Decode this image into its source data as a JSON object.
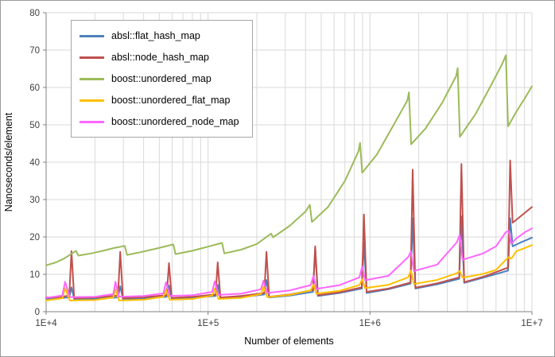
{
  "window": {
    "background": "#ffffff",
    "border_color": "#9b9b9b"
  },
  "chart_data": {
    "type": "line",
    "title": "",
    "xlabel": "Number of elements",
    "ylabel": "Nanoseconds/element",
    "x_scale": "log",
    "x_range": [
      10000,
      10000000
    ],
    "ylim": [
      0,
      80
    ],
    "grid": true,
    "gridline_color": "#d9d9d9",
    "axis_color": "#808080",
    "tick_label_color": "#3f3f3f",
    "legend_position": "top-left-inside",
    "y_ticks": [
      0,
      10,
      20,
      30,
      40,
      50,
      60,
      70,
      80
    ],
    "x_ticks": [
      {
        "value": 10000,
        "label": "1E+4"
      },
      {
        "value": 100000,
        "label": "1E+5"
      },
      {
        "value": 1000000,
        "label": "1E+6"
      },
      {
        "value": 10000000,
        "label": "1E+7"
      }
    ],
    "series": [
      {
        "name": "absl::flat_hash_map",
        "color": "#4F81BD",
        "points": [
          [
            10000,
            3.5
          ],
          [
            13900,
            3.8
          ],
          [
            14336,
            6.5
          ],
          [
            14900,
            3.4
          ],
          [
            20000,
            3.5
          ],
          [
            27800,
            3.8
          ],
          [
            28672,
            6.8
          ],
          [
            29800,
            3.4
          ],
          [
            40000,
            3.6
          ],
          [
            55600,
            4.0
          ],
          [
            57344,
            7.0
          ],
          [
            59600,
            3.5
          ],
          [
            80000,
            3.7
          ],
          [
            111200,
            4.2
          ],
          [
            114688,
            7.2
          ],
          [
            119200,
            3.6
          ],
          [
            160000,
            3.9
          ],
          [
            222400,
            4.6
          ],
          [
            229376,
            8.5
          ],
          [
            238400,
            3.8
          ],
          [
            320000,
            4.3
          ],
          [
            445000,
            5.3
          ],
          [
            458752,
            17.0
          ],
          [
            476800,
            4.2
          ],
          [
            650000,
            5.0
          ],
          [
            890000,
            6.2
          ],
          [
            917504,
            18.5
          ],
          [
            953600,
            5.0
          ],
          [
            1300000,
            6.0
          ],
          [
            1780000,
            7.5
          ],
          [
            1835008,
            25.0
          ],
          [
            1907200,
            6.2
          ],
          [
            2600000,
            7.3
          ],
          [
            3560000,
            8.8
          ],
          [
            3670016,
            25.5
          ],
          [
            3814400,
            7.7
          ],
          [
            5200000,
            9.3
          ],
          [
            7120000,
            11.0
          ],
          [
            7340032,
            25.0
          ],
          [
            7600000,
            17.5
          ],
          [
            8500000,
            18.5
          ],
          [
            10000000,
            19.8
          ]
        ]
      },
      {
        "name": "absl::node_hash_map",
        "color": "#C0504D",
        "points": [
          [
            10000,
            3.8
          ],
          [
            12000,
            3.9
          ],
          [
            13900,
            4.3
          ],
          [
            14336,
            16.2
          ],
          [
            14900,
            3.6
          ],
          [
            20000,
            3.8
          ],
          [
            27800,
            4.3
          ],
          [
            28672,
            16.0
          ],
          [
            29800,
            3.6
          ],
          [
            40000,
            3.9
          ],
          [
            55600,
            4.4
          ],
          [
            57344,
            13.0
          ],
          [
            59600,
            3.7
          ],
          [
            80000,
            4.0
          ],
          [
            111200,
            4.6
          ],
          [
            114688,
            13.2
          ],
          [
            119200,
            3.8
          ],
          [
            160000,
            4.2
          ],
          [
            222400,
            5.0
          ],
          [
            229376,
            16.0
          ],
          [
            238400,
            4.0
          ],
          [
            320000,
            4.6
          ],
          [
            445000,
            5.8
          ],
          [
            458752,
            17.5
          ],
          [
            476800,
            4.4
          ],
          [
            650000,
            5.2
          ],
          [
            890000,
            6.5
          ],
          [
            917504,
            26.0
          ],
          [
            953600,
            5.3
          ],
          [
            1300000,
            6.2
          ],
          [
            1780000,
            7.8
          ],
          [
            1835008,
            38.0
          ],
          [
            1907200,
            6.4
          ],
          [
            2600000,
            7.6
          ],
          [
            3560000,
            9.2
          ],
          [
            3670016,
            39.5
          ],
          [
            3814400,
            7.9
          ],
          [
            5200000,
            9.6
          ],
          [
            7120000,
            11.8
          ],
          [
            7340032,
            40.5
          ],
          [
            7600000,
            23.8
          ],
          [
            8500000,
            25.5
          ],
          [
            10000000,
            28.0
          ]
        ]
      },
      {
        "name": "boost::unordered_map",
        "color": "#9BBB59",
        "points": [
          [
            10000,
            12.4
          ],
          [
            11500,
            13.2
          ],
          [
            13000,
            14.3
          ],
          [
            15300,
            16.3
          ],
          [
            15800,
            15.0
          ],
          [
            19000,
            15.6
          ],
          [
            23000,
            16.4
          ],
          [
            26000,
            17.0
          ],
          [
            30600,
            17.6
          ],
          [
            31600,
            15.2
          ],
          [
            38000,
            15.9
          ],
          [
            48000,
            16.9
          ],
          [
            61000,
            18.0
          ],
          [
            63000,
            15.4
          ],
          [
            80000,
            16.3
          ],
          [
            100000,
            17.4
          ],
          [
            122000,
            18.4
          ],
          [
            126000,
            15.6
          ],
          [
            160000,
            16.6
          ],
          [
            200000,
            18.1
          ],
          [
            245000,
            20.9
          ],
          [
            252000,
            19.9
          ],
          [
            320000,
            23.0
          ],
          [
            400000,
            26.8
          ],
          [
            425000,
            28.6
          ],
          [
            438000,
            24.0
          ],
          [
            550000,
            28.0
          ],
          [
            700000,
            35.0
          ],
          [
            850000,
            43.0
          ],
          [
            868000,
            45.2
          ],
          [
            895000,
            37.2
          ],
          [
            1100000,
            42.0
          ],
          [
            1400000,
            50.0
          ],
          [
            1700000,
            56.5
          ],
          [
            1740000,
            58.7
          ],
          [
            1795000,
            44.8
          ],
          [
            2200000,
            49.0
          ],
          [
            2800000,
            56.0
          ],
          [
            3400000,
            63.0
          ],
          [
            3480000,
            65.2
          ],
          [
            3590000,
            46.8
          ],
          [
            4500000,
            53.0
          ],
          [
            5500000,
            60.0
          ],
          [
            6500000,
            66.0
          ],
          [
            6900000,
            68.6
          ],
          [
            7120000,
            49.6
          ],
          [
            8000000,
            53.5
          ],
          [
            9000000,
            57.0
          ],
          [
            10000000,
            60.3
          ]
        ]
      },
      {
        "name": "boost::unordered_flat_map",
        "color": "#FFC000",
        "points": [
          [
            10000,
            3.0
          ],
          [
            12600,
            3.6
          ],
          [
            13100,
            6.3
          ],
          [
            14000,
            3.0
          ],
          [
            20000,
            3.1
          ],
          [
            26000,
            3.8
          ],
          [
            26800,
            6.0
          ],
          [
            28200,
            3.0
          ],
          [
            40000,
            3.2
          ],
          [
            53000,
            4.0
          ],
          [
            55000,
            5.8
          ],
          [
            58000,
            3.2
          ],
          [
            80000,
            3.4
          ],
          [
            106000,
            4.3
          ],
          [
            110000,
            6.1
          ],
          [
            116000,
            3.4
          ],
          [
            160000,
            3.7
          ],
          [
            212000,
            4.7
          ],
          [
            220000,
            6.7
          ],
          [
            232000,
            3.9
          ],
          [
            320000,
            4.5
          ],
          [
            430000,
            5.7
          ],
          [
            448000,
            7.3
          ],
          [
            466000,
            4.8
          ],
          [
            650000,
            5.6
          ],
          [
            860000,
            7.1
          ],
          [
            896000,
            8.7
          ],
          [
            932000,
            6.3
          ],
          [
            1300000,
            7.2
          ],
          [
            1720000,
            9.2
          ],
          [
            1790000,
            11.0
          ],
          [
            1865000,
            7.4
          ],
          [
            2600000,
            8.5
          ],
          [
            3440000,
            10.3
          ],
          [
            3580000,
            10.9
          ],
          [
            3730000,
            9.1
          ],
          [
            5000000,
            10.1
          ],
          [
            6000000,
            11.2
          ],
          [
            6900000,
            13.9
          ],
          [
            7200000,
            14.6
          ],
          [
            7460000,
            14.2
          ],
          [
            8000000,
            16.2
          ],
          [
            9000000,
            17.0
          ],
          [
            10000000,
            17.8
          ]
        ]
      },
      {
        "name": "boost::unordered_node_map",
        "color": "#FF66FF",
        "points": [
          [
            10000,
            3.7
          ],
          [
            12600,
            4.3
          ],
          [
            13100,
            8.0
          ],
          [
            14000,
            3.9
          ],
          [
            20000,
            4.0
          ],
          [
            26000,
            4.7
          ],
          [
            26800,
            8.0
          ],
          [
            28200,
            4.0
          ],
          [
            40000,
            4.2
          ],
          [
            53000,
            4.9
          ],
          [
            55000,
            7.9
          ],
          [
            58000,
            4.2
          ],
          [
            80000,
            4.4
          ],
          [
            106000,
            5.3
          ],
          [
            110000,
            8.1
          ],
          [
            116000,
            4.5
          ],
          [
            160000,
            4.8
          ],
          [
            212000,
            6.0
          ],
          [
            220000,
            8.3
          ],
          [
            232000,
            5.0
          ],
          [
            320000,
            5.7
          ],
          [
            430000,
            7.1
          ],
          [
            448000,
            9.6
          ],
          [
            466000,
            6.1
          ],
          [
            650000,
            7.1
          ],
          [
            860000,
            9.2
          ],
          [
            896000,
            12.1
          ],
          [
            932000,
            8.4
          ],
          [
            1300000,
            9.6
          ],
          [
            1720000,
            14.6
          ],
          [
            1790000,
            16.1
          ],
          [
            1865000,
            10.9
          ],
          [
            2600000,
            12.6
          ],
          [
            3440000,
            18.6
          ],
          [
            3580000,
            20.6
          ],
          [
            3730000,
            13.9
          ],
          [
            5000000,
            15.6
          ],
          [
            6000000,
            17.5
          ],
          [
            6900000,
            21.3
          ],
          [
            7200000,
            21.6
          ],
          [
            7460000,
            18.2
          ],
          [
            8000000,
            19.6
          ],
          [
            9000000,
            21.2
          ],
          [
            10000000,
            22.3
          ]
        ]
      }
    ]
  }
}
